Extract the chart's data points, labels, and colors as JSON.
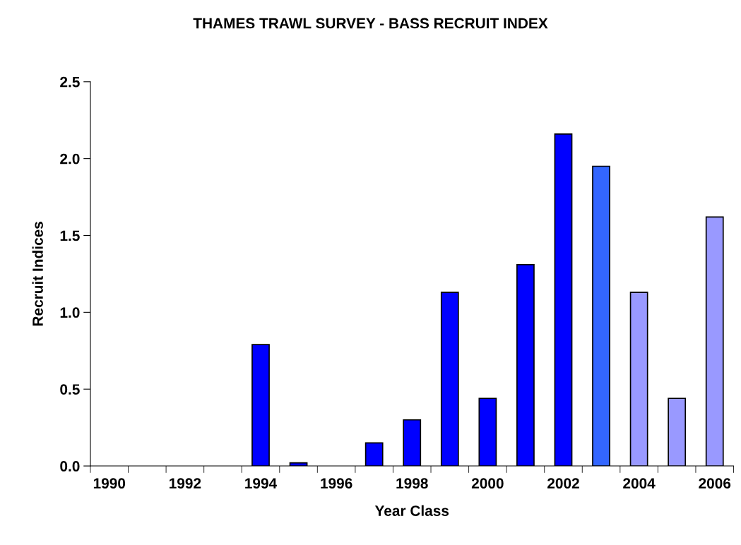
{
  "chart_data": {
    "type": "bar",
    "title": "THAMES TRAWL SURVEY - BASS RECRUIT INDEX",
    "xlabel": "Year Class",
    "ylabel": "Recruit Indices",
    "categories": [
      "1990",
      null,
      "1992",
      null,
      "1994",
      null,
      "1996",
      null,
      "1998",
      null,
      "2000",
      null,
      "2002",
      null,
      "2004",
      null,
      "2006"
    ],
    "values": [
      null,
      null,
      null,
      null,
      0.79,
      0.02,
      null,
      0.15,
      0.3,
      1.13,
      0.44,
      1.31,
      2.16,
      1.95,
      1.13,
      0.44,
      1.62
    ],
    "colors": [
      "#0000ff",
      "#0000ff",
      "#0000ff",
      "#0000ff",
      "#0000ff",
      "#0000ff",
      "#0000ff",
      "#0000ff",
      "#0000ff",
      "#0000ff",
      "#0000ff",
      "#0000ff",
      "#0000ff",
      "#3366ff",
      "#9999ff",
      "#9999ff",
      "#9999ff"
    ],
    "ylim": [
      0,
      2.5
    ],
    "yticks": [
      {
        "value": 0,
        "label": "0.0"
      },
      0.5,
      {
        "value": 1,
        "label": "1.0"
      },
      1.5,
      {
        "value": 2,
        "label": "2.0"
      },
      2.5
    ],
    "grid": false,
    "legend": false
  }
}
